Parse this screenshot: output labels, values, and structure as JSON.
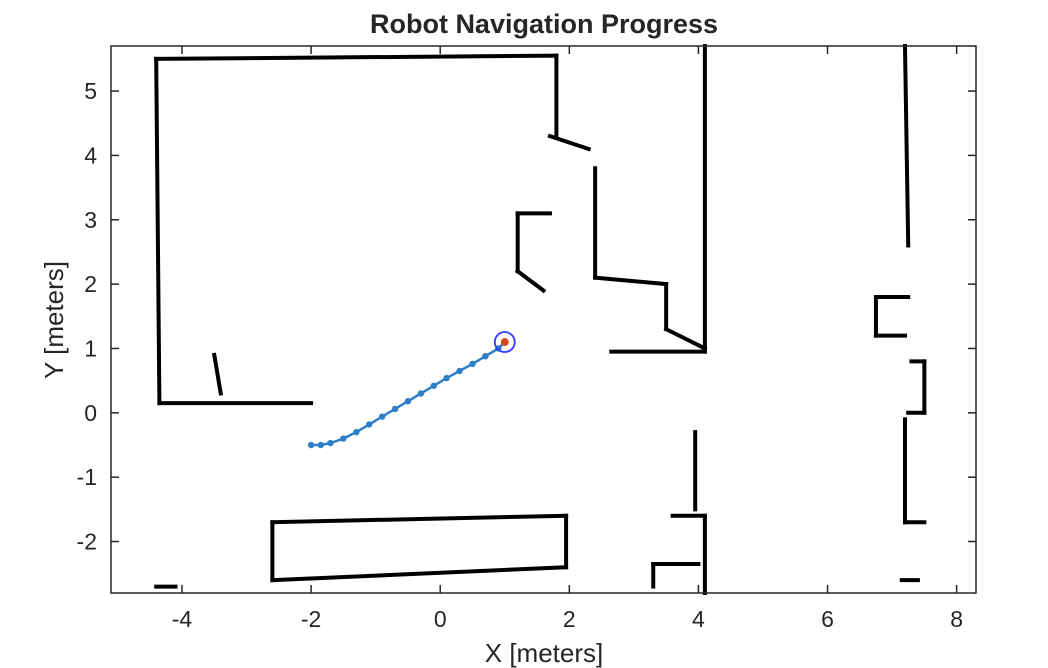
{
  "chart_data": {
    "type": "scatter",
    "title": "Robot Navigation Progress",
    "xlabel": "X [meters]",
    "ylabel": "Y [meters]",
    "xlim": [
      -5.1,
      8.3
    ],
    "ylim": [
      -2.8,
      5.7
    ],
    "xticks": [
      -4,
      -2,
      0,
      2,
      4,
      6,
      8
    ],
    "yticks": [
      -2,
      -1,
      0,
      1,
      2,
      3,
      4,
      5
    ],
    "grid": false,
    "legend": "none",
    "colors": {
      "map": "#000000",
      "path": "#2f7fc8",
      "goal_marker": "#3434ff",
      "robot_marker": "#d84a1b",
      "axes": "#262626"
    },
    "series": [
      {
        "kind": "line",
        "role": "occupancy-map",
        "segments": [
          [
            [
              -4.4,
              5.5
            ],
            [
              1.8,
              5.55
            ]
          ],
          [
            [
              -4.4,
              5.5
            ],
            [
              -4.35,
              0.15
            ]
          ],
          [
            [
              -4.35,
              0.15
            ],
            [
              -2.0,
              0.15
            ]
          ],
          [
            [
              1.8,
              5.55
            ],
            [
              1.8,
              4.3
            ]
          ],
          [
            [
              1.7,
              4.3
            ],
            [
              2.3,
              4.1
            ]
          ],
          [
            [
              1.2,
              3.1
            ],
            [
              1.7,
              3.1
            ]
          ],
          [
            [
              1.2,
              3.1
            ],
            [
              1.2,
              2.2
            ]
          ],
          [
            [
              1.2,
              2.2
            ],
            [
              1.6,
              1.9
            ]
          ],
          [
            [
              2.4,
              3.8
            ],
            [
              2.4,
              2.1
            ]
          ],
          [
            [
              2.4,
              2.1
            ],
            [
              3.5,
              2.0
            ]
          ],
          [
            [
              3.5,
              2.0
            ],
            [
              3.5,
              1.3
            ]
          ],
          [
            [
              3.5,
              1.3
            ],
            [
              4.1,
              1.0
            ]
          ],
          [
            [
              2.65,
              0.95
            ],
            [
              4.1,
              0.95
            ]
          ],
          [
            [
              4.1,
              5.7
            ],
            [
              4.1,
              0.95
            ]
          ],
          [
            [
              7.2,
              5.7
            ],
            [
              7.25,
              2.6
            ]
          ],
          [
            [
              6.75,
              1.8
            ],
            [
              7.25,
              1.8
            ]
          ],
          [
            [
              6.75,
              1.8
            ],
            [
              6.75,
              1.2
            ]
          ],
          [
            [
              6.75,
              1.2
            ],
            [
              7.2,
              1.2
            ]
          ],
          [
            [
              7.3,
              0.8
            ],
            [
              7.5,
              0.8
            ]
          ],
          [
            [
              7.5,
              0.8
            ],
            [
              7.5,
              0.0
            ]
          ],
          [
            [
              7.25,
              0.0
            ],
            [
              7.5,
              0.0
            ]
          ],
          [
            [
              7.2,
              -0.1
            ],
            [
              7.2,
              -1.7
            ]
          ],
          [
            [
              7.2,
              -1.7
            ],
            [
              7.5,
              -1.7
            ]
          ],
          [
            [
              7.15,
              -2.6
            ],
            [
              7.4,
              -2.6
            ]
          ],
          [
            [
              3.95,
              -0.3
            ],
            [
              3.95,
              -1.5
            ]
          ],
          [
            [
              3.6,
              -1.6
            ],
            [
              4.1,
              -1.6
            ]
          ],
          [
            [
              4.1,
              -1.6
            ],
            [
              4.1,
              -2.8
            ]
          ],
          [
            [
              3.3,
              -2.35
            ],
            [
              4.0,
              -2.35
            ]
          ],
          [
            [
              3.3,
              -2.35
            ],
            [
              3.3,
              -2.7
            ]
          ],
          [
            [
              -2.6,
              -1.7
            ],
            [
              1.95,
              -1.6
            ]
          ],
          [
            [
              1.95,
              -1.6
            ],
            [
              1.95,
              -2.4
            ]
          ],
          [
            [
              1.95,
              -2.4
            ],
            [
              -2.6,
              -2.6
            ]
          ],
          [
            [
              -2.6,
              -2.6
            ],
            [
              -2.6,
              -1.7
            ]
          ],
          [
            [
              -3.5,
              0.9
            ],
            [
              -3.4,
              0.3
            ]
          ],
          [
            [
              -4.4,
              -2.7
            ],
            [
              -4.1,
              -2.7
            ]
          ]
        ]
      },
      {
        "kind": "line",
        "role": "robot-path",
        "x": [
          -2.0,
          -1.85,
          -1.7,
          -1.5,
          -1.3,
          -1.1,
          -0.9,
          -0.7,
          -0.5,
          -0.3,
          -0.1,
          0.1,
          0.3,
          0.5,
          0.7,
          0.9,
          1.0
        ],
        "y": [
          -0.5,
          -0.5,
          -0.47,
          -0.4,
          -0.3,
          -0.18,
          -0.06,
          0.06,
          0.18,
          0.3,
          0.42,
          0.54,
          0.65,
          0.76,
          0.88,
          1.0,
          1.1
        ]
      },
      {
        "kind": "marker",
        "role": "goal-circle",
        "x": 1.0,
        "y": 1.1
      },
      {
        "kind": "marker",
        "role": "robot-position",
        "x": 1.0,
        "y": 1.1
      }
    ]
  }
}
